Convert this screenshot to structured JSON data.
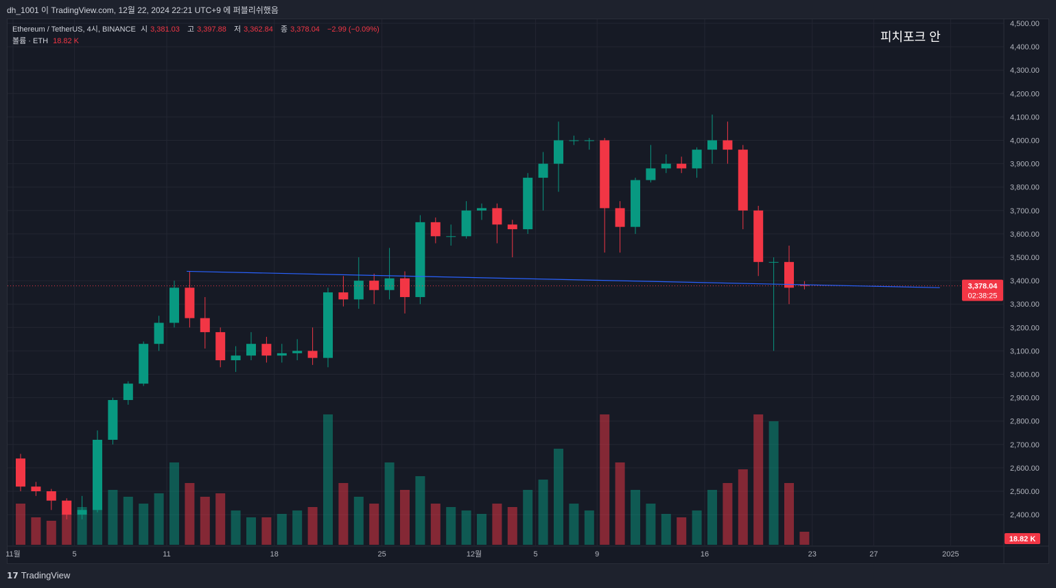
{
  "header": {
    "published": "dh_1001 이 TradingView.com, 12월 22, 2024 22:21 UTC+9 에 퍼블리쉬했음"
  },
  "legend": {
    "symbol": "Ethereum / TetherUS, 4시, BINANCE",
    "open_label": "시",
    "open": "3,381.03",
    "high_label": "고",
    "high": "3,397.88",
    "low_label": "저",
    "low": "3,362.84",
    "close_label": "종",
    "close": "3,378.04",
    "change": "−2.99 (−0.09%)",
    "volume_label": "볼륨 · ETH",
    "volume": "18.82 K"
  },
  "watermark": "피치포크 안",
  "price_badge": {
    "price": "3,378.04",
    "countdown": "02:38:25"
  },
  "volume_badge": "18.82 K",
  "footer": {
    "brand": "TradingView",
    "logo_icon": "tradingview-logo-icon"
  },
  "colors": {
    "up": "#089981",
    "down": "#f23645",
    "trendline": "#2962ff",
    "bg": "#161a25"
  },
  "chart_data": {
    "type": "candlestick",
    "title": "Ethereum / TetherUS, 4시, BINANCE",
    "ylim": [
      2300,
      4500
    ],
    "yticks": [
      "4,500.00",
      "4,400.00",
      "4,300.00",
      "4,200.00",
      "4,100.00",
      "4,000.00",
      "3,900.00",
      "3,800.00",
      "3,700.00",
      "3,600.00",
      "3,500.00",
      "3,400.00",
      "3,300.00",
      "3,200.00",
      "3,100.00",
      "3,000.00",
      "2,900.00",
      "2,800.00",
      "2,700.00",
      "2,600.00",
      "2,500.00",
      "2,400.00"
    ],
    "ytick_values": [
      4500,
      4400,
      4300,
      4200,
      4100,
      4000,
      3900,
      3800,
      3700,
      3600,
      3500,
      3400,
      3300,
      3200,
      3100,
      3000,
      2900,
      2800,
      2700,
      2600,
      2500,
      2400
    ],
    "xticks": [
      {
        "label": "11월",
        "day": 0
      },
      {
        "label": "5",
        "day": 4
      },
      {
        "label": "11",
        "day": 10
      },
      {
        "label": "18",
        "day": 17
      },
      {
        "label": "25",
        "day": 24
      },
      {
        "label": "12월",
        "day": 30
      },
      {
        "label": "5",
        "day": 34
      },
      {
        "label": "9",
        "day": 38
      },
      {
        "label": "16",
        "day": 45
      },
      {
        "label": "23",
        "day": 52
      },
      {
        "label": "27",
        "day": 56
      },
      {
        "label": "2025",
        "day": 61
      }
    ],
    "candles_daily_ohlc_from_nov1": [
      [
        2640,
        2660,
        2500,
        2520
      ],
      [
        2520,
        2540,
        2480,
        2500
      ],
      [
        2500,
        2510,
        2420,
        2460
      ],
      [
        2460,
        2470,
        2380,
        2400
      ],
      [
        2400,
        2480,
        2380,
        2420
      ],
      [
        2420,
        2760,
        2410,
        2720
      ],
      [
        2720,
        2900,
        2700,
        2890
      ],
      [
        2890,
        2970,
        2870,
        2960
      ],
      [
        2960,
        3140,
        2950,
        3130
      ],
      [
        3130,
        3250,
        3100,
        3220
      ],
      [
        3220,
        3400,
        3200,
        3370
      ],
      [
        3370,
        3440,
        3200,
        3240
      ],
      [
        3240,
        3330,
        3110,
        3180
      ],
      [
        3180,
        3200,
        3030,
        3060
      ],
      [
        3060,
        3120,
        3010,
        3080
      ],
      [
        3080,
        3180,
        3060,
        3130
      ],
      [
        3130,
        3160,
        3050,
        3080
      ],
      [
        3080,
        3130,
        3050,
        3090
      ],
      [
        3090,
        3150,
        3060,
        3100
      ],
      [
        3100,
        3200,
        3040,
        3070
      ],
      [
        3070,
        3370,
        3030,
        3350
      ],
      [
        3350,
        3420,
        3290,
        3320
      ],
      [
        3320,
        3500,
        3280,
        3400
      ],
      [
        3400,
        3430,
        3300,
        3360
      ],
      [
        3360,
        3540,
        3320,
        3410
      ],
      [
        3410,
        3440,
        3260,
        3330
      ],
      [
        3330,
        3680,
        3300,
        3650
      ],
      [
        3650,
        3670,
        3560,
        3590
      ],
      [
        3590,
        3640,
        3550,
        3590
      ],
      [
        3590,
        3740,
        3580,
        3700
      ],
      [
        3700,
        3730,
        3660,
        3710
      ],
      [
        3710,
        3730,
        3560,
        3640
      ],
      [
        3640,
        3660,
        3500,
        3620
      ],
      [
        3620,
        3860,
        3600,
        3840
      ],
      [
        3840,
        3950,
        3700,
        3900
      ],
      [
        3900,
        4080,
        3780,
        4000
      ],
      [
        4000,
        4020,
        3980,
        4000
      ],
      [
        4000,
        4010,
        3960,
        4000
      ],
      [
        4000,
        4010,
        3520,
        3710
      ],
      [
        3710,
        3740,
        3520,
        3630
      ],
      [
        3630,
        3840,
        3600,
        3830
      ],
      [
        3830,
        3980,
        3820,
        3880
      ],
      [
        3880,
        3940,
        3860,
        3900
      ],
      [
        3900,
        3930,
        3860,
        3880
      ],
      [
        3880,
        3970,
        3840,
        3960
      ],
      [
        3960,
        4110,
        3900,
        4000
      ],
      [
        4000,
        4080,
        3900,
        3960
      ],
      [
        3960,
        3980,
        3620,
        3700
      ],
      [
        3700,
        3720,
        3420,
        3480
      ],
      [
        3480,
        3500,
        3100,
        3480
      ],
      [
        3480,
        3550,
        3300,
        3370
      ],
      [
        3381.03,
        3397.88,
        3362.84,
        3378.04
      ]
    ],
    "volume_daily_k": [
      60,
      40,
      35,
      45,
      55,
      110,
      80,
      70,
      60,
      75,
      120,
      90,
      70,
      75,
      50,
      40,
      40,
      45,
      50,
      55,
      190,
      90,
      70,
      60,
      120,
      80,
      100,
      60,
      55,
      50,
      45,
      60,
      55,
      80,
      95,
      140,
      60,
      50,
      190,
      120,
      80,
      60,
      45,
      40,
      50,
      80,
      90,
      110,
      190,
      180,
      90,
      19
    ],
    "trendline": {
      "from": {
        "day": 11.3,
        "price": 3440
      },
      "to": {
        "day": 60.3,
        "price": 3370
      }
    },
    "last_price_line": 3378.04
  }
}
